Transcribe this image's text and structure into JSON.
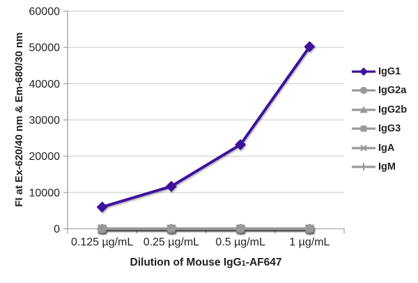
{
  "chart_data": {
    "type": "line",
    "title": "",
    "categories": [
      "0.125 µg/mL",
      "0.25 µg/mL",
      "0.5 µg/mL",
      "1 µg/mL"
    ],
    "series": [
      {
        "name": "IgG1",
        "marker": "diamond",
        "color": "#3E119C",
        "values": [
          6000,
          11700,
          23200,
          50200
        ]
      },
      {
        "name": "IgG2a",
        "marker": "circle",
        "color": "#999999",
        "values": [
          0,
          0,
          0,
          0
        ]
      },
      {
        "name": "IgG2b",
        "marker": "triangle",
        "color": "#999999",
        "values": [
          0,
          0,
          0,
          0
        ]
      },
      {
        "name": "IgG3",
        "marker": "square",
        "color": "#999999",
        "values": [
          0,
          0,
          0,
          0
        ]
      },
      {
        "name": "IgA",
        "marker": "asterisk",
        "color": "#999999",
        "values": [
          0,
          0,
          0,
          0
        ]
      },
      {
        "name": "IgM",
        "marker": "plus",
        "color": "#999999",
        "values": [
          0,
          0,
          0,
          0
        ]
      }
    ],
    "xlabel": "Dilution of Mouse IgG1-AF647",
    "xlabel_parts": {
      "prefix": "Dilution of Mouse IgG",
      "sub": "1",
      "suffix": "-AF647"
    },
    "ylabel": "FI at Ex-620/40 nm & Em-680/30 nm",
    "ylim": [
      0,
      60000
    ],
    "ytick_step": 10000,
    "yticks": [
      "0",
      "10000",
      "20000",
      "30000",
      "40000",
      "50000",
      "60000"
    ],
    "grid": "horizontal",
    "legend_position": "right",
    "colors": {
      "accent_purple": "#3E119C",
      "series_gray": "#999999",
      "axis": "#A6A6A6",
      "gridline": "#C9C9C9",
      "text": "#231F20"
    }
  }
}
